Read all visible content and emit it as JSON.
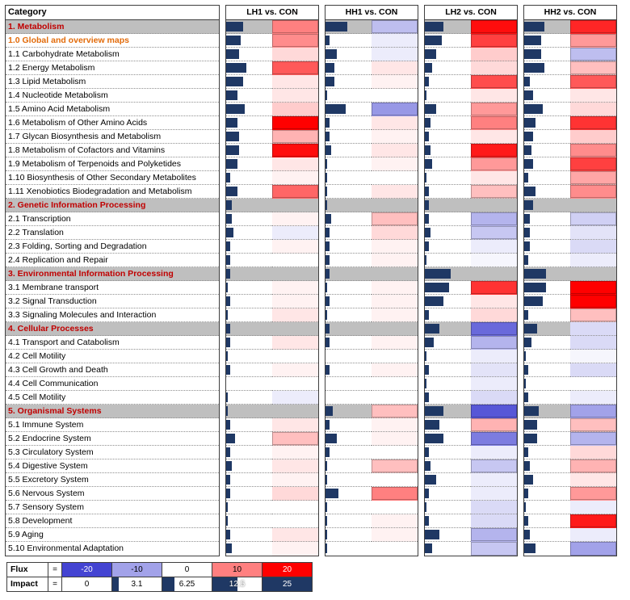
{
  "chart_data": {
    "type": "heatmap",
    "category_header": "Category",
    "comparisons": [
      "LH1 vs. CON",
      "HH1 vs. CON",
      "LH2 vs. CON",
      "HH2 vs. CON"
    ],
    "measures": [
      "impact",
      "flux"
    ],
    "impact_scale": [
      0,
      25
    ],
    "flux_scale": [
      -20,
      20
    ],
    "rows": [
      {
        "label": "1. Metabolism",
        "type": "section",
        "cells": [
          [
            9,
            10
          ],
          [
            12,
            -7
          ],
          [
            10,
            19
          ],
          [
            11,
            17
          ]
        ]
      },
      {
        "label": "1.0 Global and overview maps",
        "type": "sub",
        "cells": [
          [
            8,
            9
          ],
          [
            2,
            -2
          ],
          [
            9,
            15
          ],
          [
            9,
            8
          ]
        ]
      },
      {
        "label": "1.1 Carbohydrate Metabolism",
        "type": "item",
        "cells": [
          [
            7,
            3
          ],
          [
            6,
            -2
          ],
          [
            6,
            4
          ],
          [
            9,
            -7
          ]
        ]
      },
      {
        "label": "1.2 Energy Metabolism",
        "type": "item",
        "cells": [
          [
            11,
            13
          ],
          [
            5,
            2
          ],
          [
            4,
            3
          ],
          [
            11,
            5
          ]
        ]
      },
      {
        "label": "1.3 Lipid Metabolism",
        "type": "item",
        "cells": [
          [
            9,
            2
          ],
          [
            5,
            1
          ],
          [
            2,
            14
          ],
          [
            3,
            13
          ]
        ]
      },
      {
        "label": "1.4 Nucleotide Metabolism",
        "type": "item",
        "cells": [
          [
            6,
            2
          ],
          [
            1,
            0
          ],
          [
            1,
            2
          ],
          [
            5,
            2
          ]
        ]
      },
      {
        "label": "1.5 Amino Acid Metabolism",
        "type": "item",
        "cells": [
          [
            10,
            4
          ],
          [
            11,
            -11
          ],
          [
            6,
            8
          ],
          [
            10,
            3
          ]
        ]
      },
      {
        "label": "1.6 Metabolism of Other Amino Acids",
        "type": "item",
        "cells": [
          [
            6,
            20
          ],
          [
            2,
            2
          ],
          [
            3,
            10
          ],
          [
            6,
            16
          ]
        ]
      },
      {
        "label": "1.7 Glycan Biosynthesis and Metabolism",
        "type": "item",
        "cells": [
          [
            7,
            6
          ],
          [
            2,
            1
          ],
          [
            2,
            2
          ],
          [
            5,
            4
          ]
        ]
      },
      {
        "label": "1.8 Metabolism of Cofactors and Vitamins",
        "type": "item",
        "cells": [
          [
            7,
            19
          ],
          [
            3,
            2
          ],
          [
            3,
            18
          ],
          [
            4,
            9
          ]
        ]
      },
      {
        "label": "1.9 Metabolism of Terpenoids and Polyketides",
        "type": "item",
        "cells": [
          [
            6,
            2
          ],
          [
            1,
            1
          ],
          [
            4,
            8
          ],
          [
            5,
            15
          ]
        ]
      },
      {
        "label": "1.10 Biosynthesis of Other Secondary Metabolites",
        "type": "item",
        "cells": [
          [
            2,
            1
          ],
          [
            1,
            0
          ],
          [
            1,
            2
          ],
          [
            2,
            7
          ]
        ]
      },
      {
        "label": "1.11 Xenobiotics Biodegradation and Metabolism",
        "type": "item",
        "cells": [
          [
            6,
            12
          ],
          [
            1,
            2
          ],
          [
            2,
            5
          ],
          [
            6,
            9
          ]
        ]
      },
      {
        "label": "2. Genetic Information Processing",
        "type": "section",
        "cells": [
          [
            3,
            null
          ],
          [
            1,
            null
          ],
          [
            2,
            null
          ],
          [
            5,
            null
          ]
        ]
      },
      {
        "label": "2.1 Transcription",
        "type": "item",
        "cells": [
          [
            3,
            1
          ],
          [
            3,
            5
          ],
          [
            2,
            -8
          ],
          [
            3,
            -5
          ]
        ]
      },
      {
        "label": "2.2 Translation",
        "type": "item",
        "cells": [
          [
            4,
            -2
          ],
          [
            2,
            3
          ],
          [
            3,
            -6
          ],
          [
            3,
            -3
          ]
        ]
      },
      {
        "label": "2.3 Folding, Sorting and Degradation",
        "type": "item",
        "cells": [
          [
            2,
            1
          ],
          [
            2,
            1
          ],
          [
            2,
            -2
          ],
          [
            3,
            -4
          ]
        ]
      },
      {
        "label": "2.4 Replication and Repair",
        "type": "item",
        "cells": [
          [
            2,
            0
          ],
          [
            2,
            1
          ],
          [
            1,
            -1
          ],
          [
            2,
            -2
          ]
        ]
      },
      {
        "label": "3. Environmental Information Processing",
        "type": "section",
        "cells": [
          [
            2,
            null
          ],
          [
            2,
            null
          ],
          [
            14,
            null
          ],
          [
            12,
            null
          ]
        ]
      },
      {
        "label": "3.1 Membrane transport",
        "type": "item",
        "cells": [
          [
            1,
            1
          ],
          [
            1,
            1
          ],
          [
            13,
            16
          ],
          [
            12,
            20
          ]
        ]
      },
      {
        "label": "3.2 Signal Transduction",
        "type": "item",
        "cells": [
          [
            2,
            1
          ],
          [
            2,
            1
          ],
          [
            10,
            2
          ],
          [
            10,
            20
          ]
        ]
      },
      {
        "label": "3.3 Signaling Molecules and Interaction",
        "type": "item",
        "cells": [
          [
            1,
            2
          ],
          [
            1,
            1
          ],
          [
            2,
            3
          ],
          [
            2,
            5
          ]
        ]
      },
      {
        "label": "4. Cellular Processes",
        "type": "section",
        "cells": [
          [
            2,
            null
          ],
          [
            2,
            null
          ],
          [
            8,
            -16
          ],
          [
            7,
            -4
          ]
        ]
      },
      {
        "label": "4.1 Transport and Catabolism",
        "type": "item",
        "cells": [
          [
            2,
            2
          ],
          [
            2,
            1
          ],
          [
            5,
            -8
          ],
          [
            4,
            -4
          ]
        ]
      },
      {
        "label": "4.2 Cell Motility",
        "type": "item",
        "cells": [
          [
            1,
            0
          ],
          [
            0,
            0
          ],
          [
            1,
            -2
          ],
          [
            1,
            -1
          ]
        ]
      },
      {
        "label": "4.3 Cell Growth and Death",
        "type": "item",
        "cells": [
          [
            2,
            1
          ],
          [
            2,
            1
          ],
          [
            2,
            -3
          ],
          [
            2,
            -4
          ]
        ]
      },
      {
        "label": "4.4 Cell Communication",
        "type": "item",
        "cells": [
          [
            0,
            0
          ],
          [
            0,
            0
          ],
          [
            1,
            -2
          ],
          [
            1,
            0
          ]
        ]
      },
      {
        "label": "4.5 Cell Motility",
        "type": "item",
        "cells": [
          [
            1,
            -2
          ],
          [
            0,
            0
          ],
          [
            2,
            -4
          ],
          [
            2,
            -2
          ]
        ]
      },
      {
        "label": "5. Organismal Systems",
        "type": "section",
        "cells": [
          [
            1,
            null
          ],
          [
            4,
            5
          ],
          [
            10,
            -18
          ],
          [
            8,
            -10
          ]
        ]
      },
      {
        "label": "5.1 Immune System",
        "type": "item",
        "cells": [
          [
            2,
            2
          ],
          [
            2,
            1
          ],
          [
            8,
            6
          ],
          [
            7,
            5
          ]
        ]
      },
      {
        "label": "5.2 Endocrine System",
        "type": "item",
        "cells": [
          [
            5,
            5
          ],
          [
            6,
            1
          ],
          [
            10,
            -14
          ],
          [
            7,
            -8
          ]
        ]
      },
      {
        "label": "5.3 Circulatory System",
        "type": "item",
        "cells": [
          [
            2,
            1
          ],
          [
            2,
            0
          ],
          [
            2,
            -2
          ],
          [
            2,
            3
          ]
        ]
      },
      {
        "label": "5.4 Digestive System",
        "type": "item",
        "cells": [
          [
            3,
            2
          ],
          [
            1,
            5
          ],
          [
            3,
            -6
          ],
          [
            3,
            6
          ]
        ]
      },
      {
        "label": "5.5 Excretory System",
        "type": "item",
        "cells": [
          [
            2,
            1
          ],
          [
            1,
            0
          ],
          [
            6,
            -2
          ],
          [
            5,
            2
          ]
        ]
      },
      {
        "label": "5.6 Nervous System",
        "type": "item",
        "cells": [
          [
            2,
            3
          ],
          [
            7,
            10
          ],
          [
            2,
            -2
          ],
          [
            2,
            8
          ]
        ]
      },
      {
        "label": "5.7 Sensory System",
        "type": "item",
        "cells": [
          [
            1,
            0
          ],
          [
            1,
            0
          ],
          [
            1,
            -4
          ],
          [
            1,
            -2
          ]
        ]
      },
      {
        "label": "5.8 Development",
        "type": "item",
        "cells": [
          [
            1,
            0
          ],
          [
            1,
            1
          ],
          [
            2,
            -4
          ],
          [
            2,
            18
          ]
        ]
      },
      {
        "label": "5.9 Aging",
        "type": "item",
        "cells": [
          [
            2,
            2
          ],
          [
            1,
            1
          ],
          [
            8,
            -8
          ],
          [
            3,
            -2
          ]
        ]
      },
      {
        "label": "5.10 Environmental Adaptation",
        "type": "item",
        "cells": [
          [
            3,
            1
          ],
          [
            1,
            0
          ],
          [
            4,
            -6
          ],
          [
            6,
            -10
          ]
        ]
      }
    ],
    "legend": {
      "flux": {
        "label": "Flux",
        "eq": "=",
        "stops": [
          -20,
          -10,
          0,
          10,
          20
        ]
      },
      "impact": {
        "label": "Impact",
        "eq": "=",
        "stops": [
          0,
          3.1,
          6.25,
          12.5,
          25
        ]
      }
    },
    "colors": {
      "impact_bar": "#1F3864",
      "flux_positive_max": "#FF0000",
      "flux_negative_max": "#4444D2",
      "section_bg": "#BFBFBF",
      "section_text": "#C00000",
      "overview_text": "#E26B0A"
    }
  }
}
